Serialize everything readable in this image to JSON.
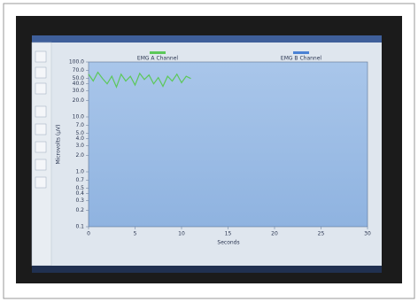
{
  "chart_data": {
    "type": "line",
    "log_y": true,
    "x_label": "Seconds",
    "y_label": "Microvolts (µV)",
    "x": [
      0,
      0.5,
      1,
      1.5,
      2,
      2.5,
      3,
      3.5,
      4,
      4.5,
      5,
      5.5,
      6,
      6.5,
      7,
      7.5,
      8,
      8.5,
      9,
      9.5,
      10,
      10.5,
      11
    ],
    "series": [
      {
        "name": "EMG A Channel",
        "color": "#5cc85a",
        "values": [
          60,
          45,
          65,
          50,
          40,
          55,
          35,
          60,
          45,
          55,
          38,
          62,
          48,
          58,
          40,
          52,
          36,
          55,
          45,
          60,
          42,
          55,
          50
        ]
      },
      {
        "name": "EMG B Channel",
        "color": "#4b82d4",
        "values": [
          null,
          null,
          null,
          null,
          null,
          null,
          null,
          null,
          null,
          null,
          null,
          null,
          null,
          null,
          null,
          null,
          null,
          null,
          null,
          null,
          null,
          null,
          null
        ]
      }
    ],
    "xlim": [
      0,
      30
    ],
    "xticks": [
      0,
      5,
      10,
      15,
      20,
      25,
      30
    ],
    "ylim": [
      0.1,
      100
    ],
    "yticks": [
      {
        "value": 100,
        "label": "100.0"
      },
      {
        "value": 70,
        "label": "70.0"
      },
      {
        "value": 50,
        "label": "50.0"
      },
      {
        "value": 40,
        "label": "40.0"
      },
      {
        "value": 30,
        "label": "30.0"
      },
      {
        "value": 20,
        "label": "20.0"
      },
      {
        "value": 10,
        "label": "10.0"
      },
      {
        "value": 7,
        "label": "7.0"
      },
      {
        "value": 5,
        "label": "5.0"
      },
      {
        "value": 4,
        "label": "4.0"
      },
      {
        "value": 3,
        "label": "3.0"
      },
      {
        "value": 2,
        "label": "2.0"
      },
      {
        "value": 1,
        "label": "1.0"
      },
      0.7,
      0.5,
      0.4,
      0.3,
      0.2,
      0.1
    ],
    "legend": "top"
  }
}
